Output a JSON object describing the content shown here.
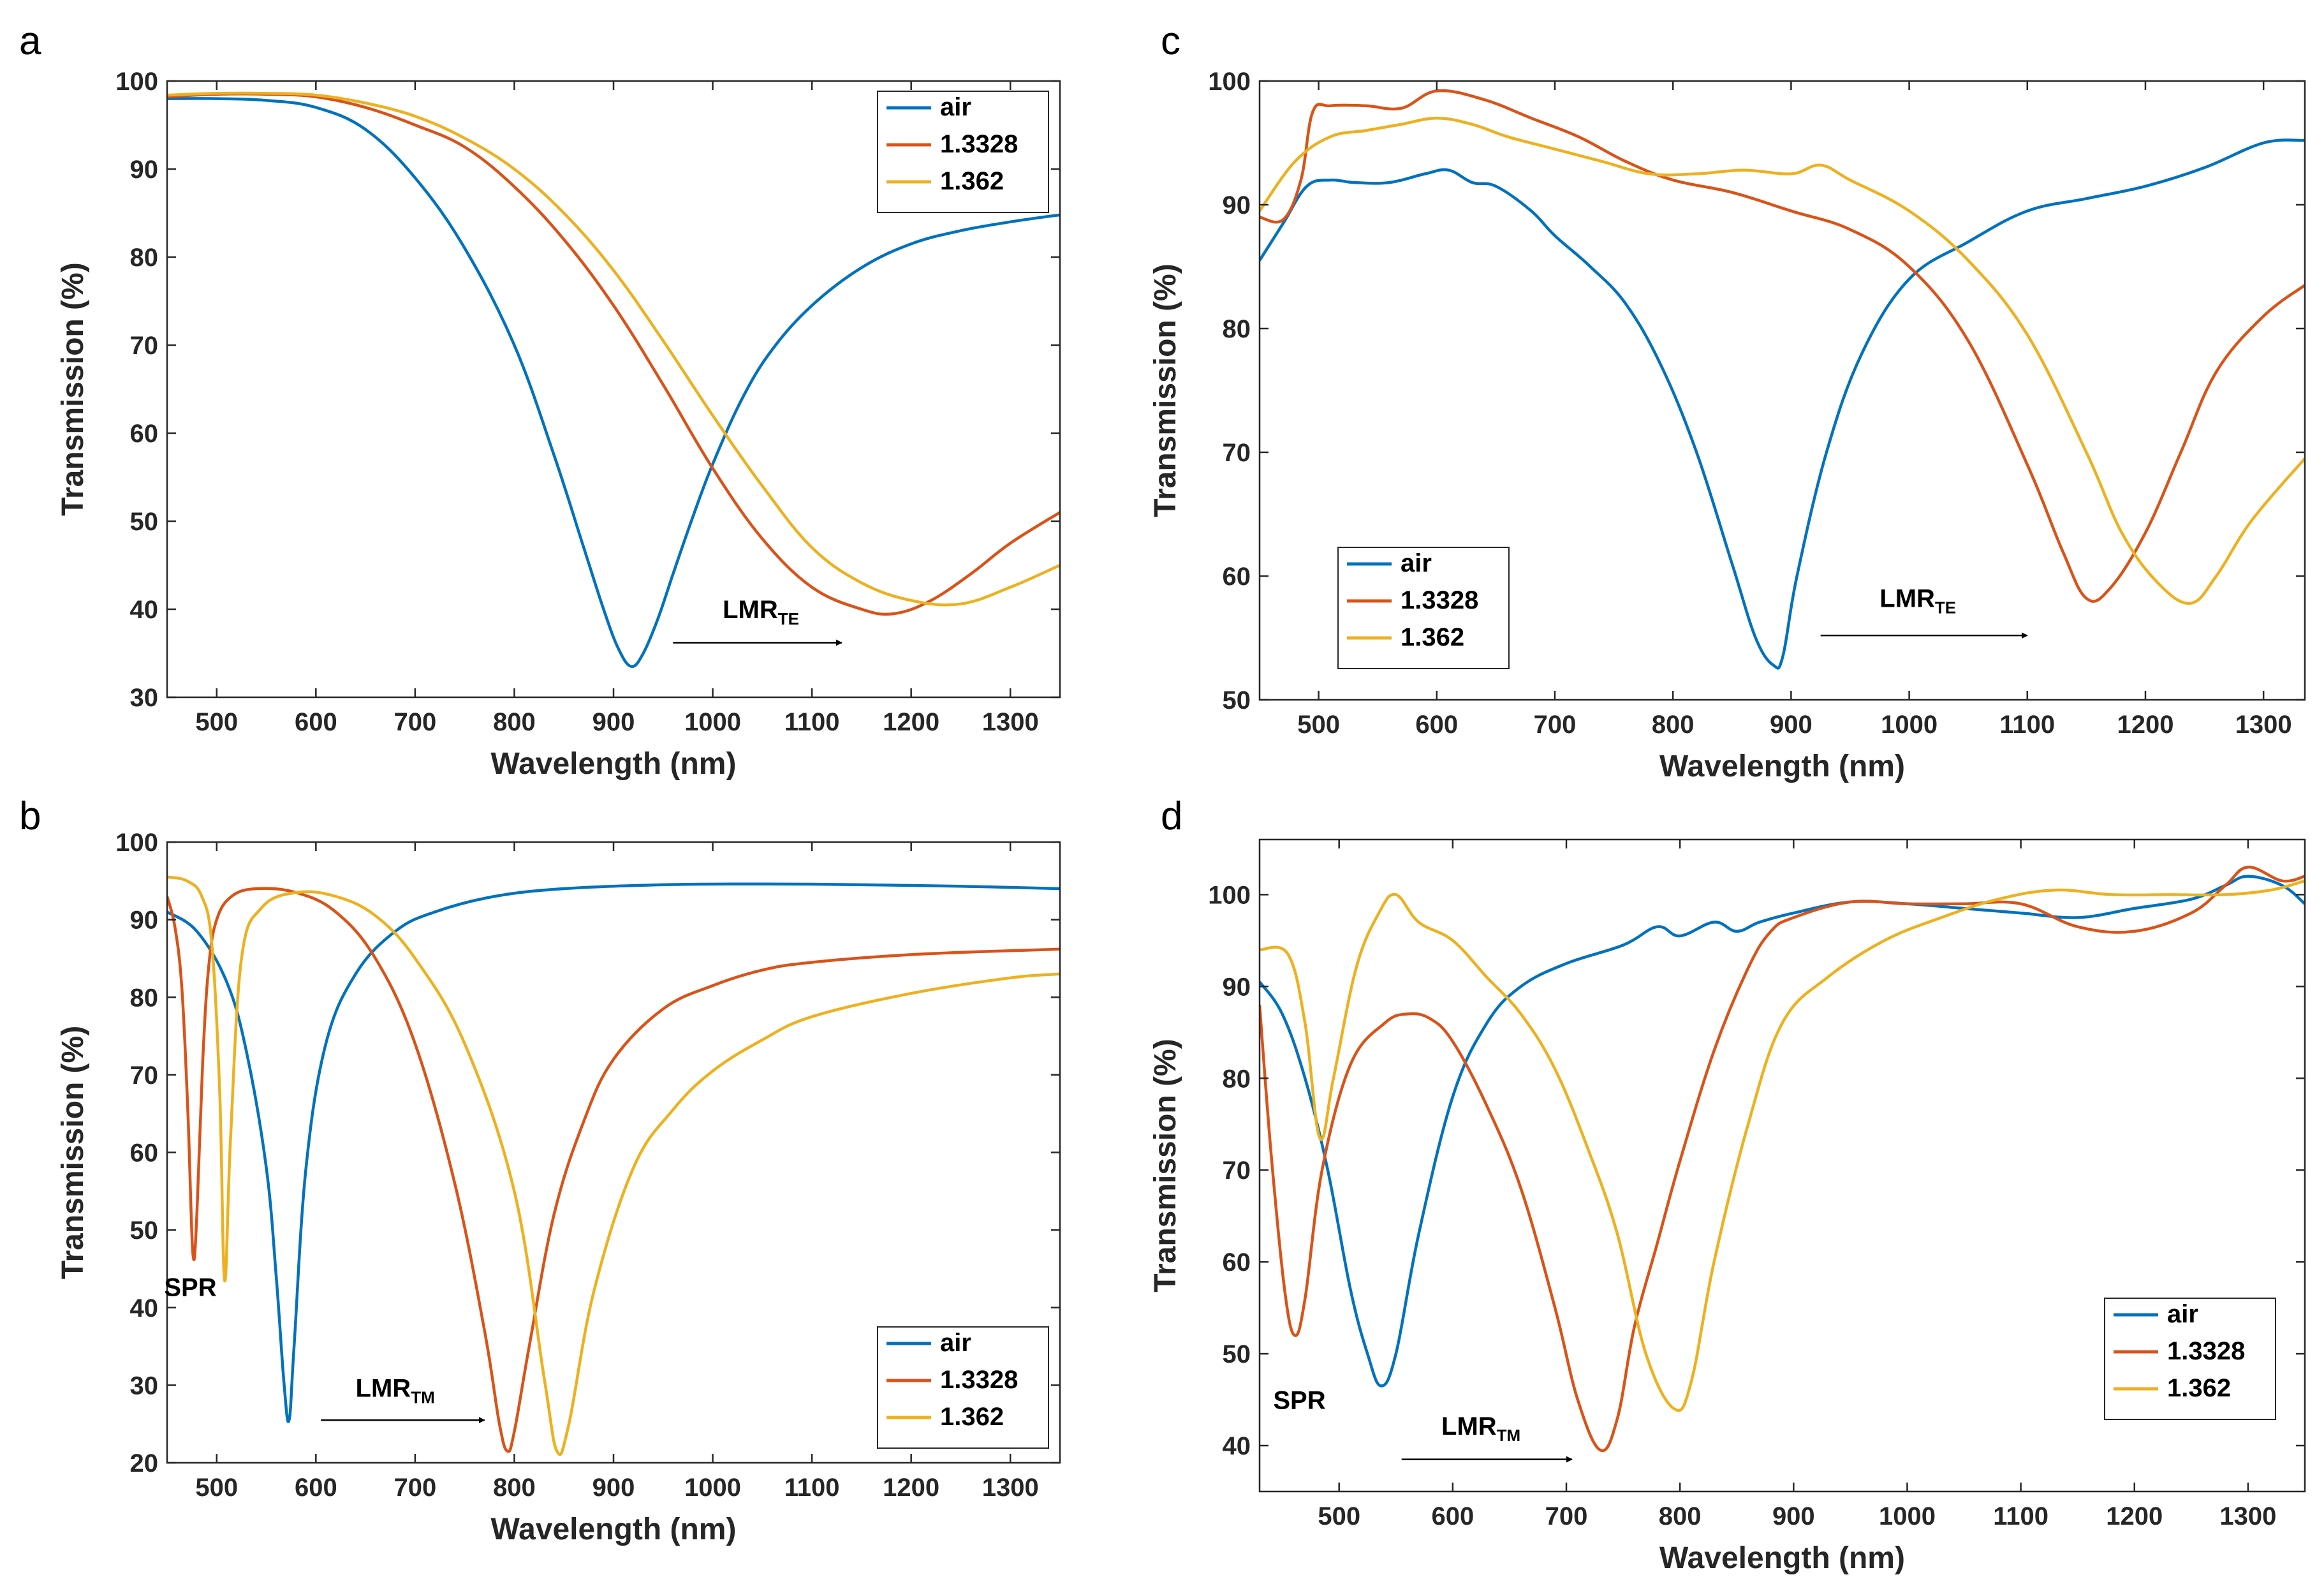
{
  "colors": {
    "air": "#0072BD",
    "1.3328": "#D95319",
    "1.362": "#EDB120"
  },
  "chart_data": [
    {
      "id": "a",
      "panel_label": "a",
      "type": "line",
      "xlabel": "Wavelength (nm)",
      "ylabel": "Transmission (%)",
      "xlim": [
        450,
        1350
      ],
      "ylim": [
        30,
        100
      ],
      "xticks": [
        500,
        600,
        700,
        800,
        900,
        1000,
        1100,
        1200,
        1300
      ],
      "yticks": [
        30,
        40,
        50,
        60,
        70,
        80,
        90,
        100
      ],
      "legend_loc": "top-right",
      "annotations": [
        {
          "text": "LMR",
          "sub": "TE",
          "x": 960,
          "y": 36.2,
          "arrow_from": 960,
          "arrow_to": 1130,
          "arrow_y": 36.2,
          "text_x": 1010,
          "text_y": 39
        }
      ],
      "series": [
        {
          "name": "air",
          "color_key": "air",
          "x": [
            450,
            500,
            550,
            600,
            650,
            700,
            750,
            800,
            840,
            870,
            890,
            905,
            918,
            930,
            945,
            960,
            980,
            1000,
            1030,
            1060,
            1100,
            1150,
            1200,
            1250,
            1300,
            1350
          ],
          "y": [
            98,
            98,
            97.8,
            97,
            94.5,
            89,
            81,
            70,
            57.5,
            47,
            40,
            35.5,
            33.5,
            35,
            39,
            44,
            50.5,
            56.5,
            64,
            69.5,
            74.5,
            78.8,
            81.5,
            83,
            84,
            84.8
          ]
        },
        {
          "name": "1.3328",
          "color_key": "1.3328",
          "x": [
            450,
            500,
            550,
            600,
            650,
            700,
            750,
            800,
            850,
            900,
            950,
            1000,
            1050,
            1100,
            1150,
            1183,
            1220,
            1260,
            1300,
            1350
          ],
          "y": [
            98.2,
            98.5,
            98.5,
            98.2,
            97,
            95,
            92.5,
            88,
            82,
            74.5,
            65.5,
            56,
            48,
            42.5,
            40,
            39.5,
            41,
            44,
            47.5,
            51
          ]
        },
        {
          "name": "1.362",
          "color_key": "1.362",
          "x": [
            450,
            500,
            550,
            600,
            650,
            700,
            750,
            800,
            850,
            900,
            950,
            1000,
            1050,
            1100,
            1150,
            1200,
            1250,
            1300,
            1350
          ],
          "y": [
            98.4,
            98.6,
            98.6,
            98.4,
            97.5,
            96,
            93.5,
            90,
            85,
            78.5,
            70.5,
            62,
            54,
            47,
            43,
            41,
            40.6,
            42.5,
            45
          ]
        }
      ]
    },
    {
      "id": "b",
      "panel_label": "b",
      "type": "line",
      "xlabel": "Wavelength (nm)",
      "ylabel": "Transmission (%)",
      "xlim": [
        450,
        1350
      ],
      "ylim": [
        20,
        100
      ],
      "xticks": [
        500,
        600,
        700,
        800,
        900,
        1000,
        1100,
        1200,
        1300
      ],
      "yticks": [
        20,
        30,
        40,
        50,
        60,
        70,
        80,
        90,
        100
      ],
      "legend_loc": "bottom-right",
      "annotations": [
        {
          "text": "LMR",
          "sub": "TM",
          "arrow_from": 605,
          "arrow_to": 770,
          "arrow_y": 25.5,
          "text_x": 640,
          "text_y": 28.5
        },
        {
          "text": "SPR",
          "sub": "",
          "text_x": 447,
          "text_y": 41.5
        }
      ],
      "series": [
        {
          "name": "air",
          "color_key": "air",
          "x": [
            450,
            480,
            510,
            530,
            550,
            560,
            568,
            573,
            578,
            590,
            610,
            640,
            680,
            720,
            780,
            850,
            950,
            1050,
            1150,
            1250,
            1350
          ],
          "y": [
            91,
            88.5,
            82,
            73,
            58,
            44,
            30,
            25.5,
            35,
            58,
            74,
            83,
            88.5,
            91,
            93,
            94,
            94.5,
            94.6,
            94.5,
            94.3,
            94
          ]
        },
        {
          "name": "1.3328",
          "color_key": "1.3328",
          "x": [
            450,
            458,
            465,
            471,
            476,
            480,
            486,
            492,
            500,
            515,
            540,
            580,
            620,
            660,
            700,
            740,
            770,
            785,
            793,
            800,
            815,
            840,
            870,
            900,
            950,
            1000,
            1050,
            1100,
            1200,
            1300,
            1350
          ],
          "y": [
            93,
            89,
            81,
            65,
            47,
            52,
            72,
            84,
            90,
            93,
            94,
            93.5,
            91,
            85,
            74,
            56,
            37,
            25,
            21.5,
            24,
            35,
            52,
            64,
            72,
            78.5,
            81.5,
            83.5,
            84.5,
            85.5,
            86,
            86.2
          ]
        },
        {
          "name": "1.362",
          "color_key": "1.362",
          "x": [
            450,
            470,
            485,
            495,
            503,
            508,
            514,
            525,
            545,
            580,
            620,
            660,
            700,
            750,
            800,
            830,
            843,
            855,
            880,
            920,
            960,
            1000,
            1050,
            1100,
            1200,
            1300,
            1350
          ],
          "y": [
            95.5,
            95,
            93,
            87,
            68,
            43.5,
            62,
            85,
            91.5,
            93.5,
            93,
            90.5,
            85,
            74,
            55,
            31,
            21.5,
            25,
            42,
            58,
            65.5,
            70.5,
            74.5,
            77.5,
            80.5,
            82.5,
            83
          ]
        }
      ]
    },
    {
      "id": "c",
      "panel_label": "c",
      "type": "line",
      "xlabel": "Wavelength (nm)",
      "ylabel": "Transmission (%)",
      "xlim": [
        450,
        1335
      ],
      "ylim": [
        50,
        100
      ],
      "xticks": [
        500,
        600,
        700,
        800,
        900,
        1000,
        1100,
        1200,
        1300
      ],
      "yticks": [
        50,
        60,
        70,
        80,
        90,
        100
      ],
      "legend_loc": "bottom-left",
      "annotations": [
        {
          "text": "LMR",
          "sub": "TE",
          "arrow_from": 925,
          "arrow_to": 1100,
          "arrow_y": 55.2,
          "text_x": 975,
          "text_y": 57.5
        }
      ],
      "series": [
        {
          "name": "air",
          "color_key": "air",
          "x": [
            450,
            470,
            490,
            510,
            530,
            560,
            590,
            610,
            630,
            650,
            680,
            700,
            730,
            760,
            790,
            820,
            850,
            870,
            885,
            893,
            905,
            930,
            960,
            1000,
            1050,
            1100,
            1150,
            1200,
            1250,
            1300,
            1335
          ],
          "y": [
            85.5,
            88.5,
            91.5,
            92,
            91.8,
            91.8,
            92.5,
            92.8,
            91.8,
            91.5,
            89.5,
            87.5,
            85,
            82,
            77,
            70,
            61,
            55,
            52.8,
            53.5,
            60,
            70,
            78,
            84,
            87,
            89.5,
            90.5,
            91.5,
            93,
            95,
            95.2
          ]
        },
        {
          "name": "1.3328",
          "color_key": "1.3328",
          "x": [
            450,
            470,
            485,
            495,
            510,
            540,
            570,
            600,
            640,
            680,
            720,
            760,
            800,
            850,
            900,
            950,
            1000,
            1050,
            1100,
            1130,
            1150,
            1170,
            1200,
            1230,
            1260,
            1300,
            1335
          ],
          "y": [
            89,
            88.8,
            92,
            97.5,
            98,
            98,
            97.8,
            99.2,
            98.5,
            97,
            95.5,
            93.5,
            92,
            91,
            89.5,
            88,
            85,
            79,
            69,
            62,
            58.2,
            59,
            63.5,
            70,
            76.5,
            81,
            83.5
          ]
        },
        {
          "name": "1.362",
          "color_key": "1.362",
          "x": [
            450,
            480,
            510,
            540,
            570,
            600,
            630,
            660,
            700,
            740,
            780,
            820,
            860,
            900,
            925,
            950,
            1000,
            1050,
            1100,
            1150,
            1180,
            1210,
            1238,
            1260,
            1290,
            1335
          ],
          "y": [
            89.5,
            93.5,
            95.5,
            96,
            96.5,
            97,
            96.5,
            95.5,
            94.5,
            93.5,
            92.5,
            92.5,
            92.8,
            92.5,
            93.2,
            92,
            89.5,
            85.5,
            79.5,
            70,
            63.5,
            59.5,
            57.8,
            60,
            64.5,
            69.5
          ]
        }
      ]
    },
    {
      "id": "d",
      "panel_label": "d",
      "type": "line",
      "xlabel": "Wavelength (nm)",
      "ylabel": "Transmission (%)",
      "xlim": [
        430,
        1350
      ],
      "ylim": [
        35,
        106
      ],
      "xticks": [
        500,
        600,
        700,
        800,
        900,
        1000,
        1100,
        1200,
        1300
      ],
      "yticks": [
        40,
        50,
        60,
        70,
        80,
        90,
        100
      ],
      "legend_loc": "bottom-right",
      "annotations": [
        {
          "text": "LMR",
          "sub": "TM",
          "arrow_from": 555,
          "arrow_to": 705,
          "arrow_y": 38.5,
          "text_x": 590,
          "text_y": 41.2
        },
        {
          "text": "SPR",
          "sub": "",
          "text_x": 442,
          "text_y": 44
        }
      ],
      "series": [
        {
          "name": "air",
          "color_key": "air",
          "x": [
            430,
            450,
            470,
            490,
            510,
            525,
            537,
            550,
            570,
            600,
            630,
            660,
            700,
            750,
            780,
            800,
            830,
            850,
            870,
            900,
            950,
            1000,
            1050,
            1100,
            1150,
            1200,
            1250,
            1280,
            1300,
            1330,
            1350
          ],
          "y": [
            90.5,
            87,
            80,
            70,
            57,
            50,
            46.5,
            50,
            63,
            78,
            86,
            90,
            92.5,
            94.5,
            96.5,
            95.5,
            97,
            96,
            97,
            98,
            99.2,
            99,
            98.5,
            98,
            97.5,
            98.5,
            99.5,
            101,
            102,
            101,
            99
          ]
        },
        {
          "name": "1.3328",
          "color_key": "1.3328",
          "x": [
            430,
            440,
            452,
            461,
            470,
            485,
            510,
            540,
            560,
            580,
            600,
            630,
            660,
            690,
            710,
            730,
            745,
            760,
            780,
            800,
            830,
            860,
            880,
            900,
            950,
            1000,
            1050,
            1100,
            1150,
            1200,
            1250,
            1280,
            1300,
            1330,
            1350
          ],
          "y": [
            88,
            72,
            57,
            52,
            56,
            70,
            81.5,
            86,
            87,
            86.5,
            84,
            77,
            68,
            55,
            45,
            39.5,
            43,
            53,
            62,
            71,
            83,
            92,
            96,
            97.5,
            99.2,
            99,
            99,
            99,
            96.5,
            96,
            98,
            101,
            103,
            101.5,
            102
          ]
        },
        {
          "name": "1.362",
          "color_key": "1.362",
          "x": [
            430,
            455,
            470,
            483,
            495,
            515,
            535,
            550,
            570,
            600,
            630,
            660,
            690,
            720,
            745,
            770,
            795,
            810,
            830,
            860,
            890,
            930,
            980,
            1030,
            1080,
            1130,
            1180,
            1230,
            1280,
            1320,
            1350
          ],
          "y": [
            94,
            93.5,
            86,
            73.5,
            80,
            92,
            98,
            100,
            97,
            95,
            91,
            87,
            81,
            72,
            63,
            50,
            44,
            47,
            60,
            75,
            86,
            91,
            95,
            97.5,
            99.5,
            100.5,
            100,
            100,
            100,
            100.5,
            101.5
          ]
        }
      ]
    }
  ]
}
